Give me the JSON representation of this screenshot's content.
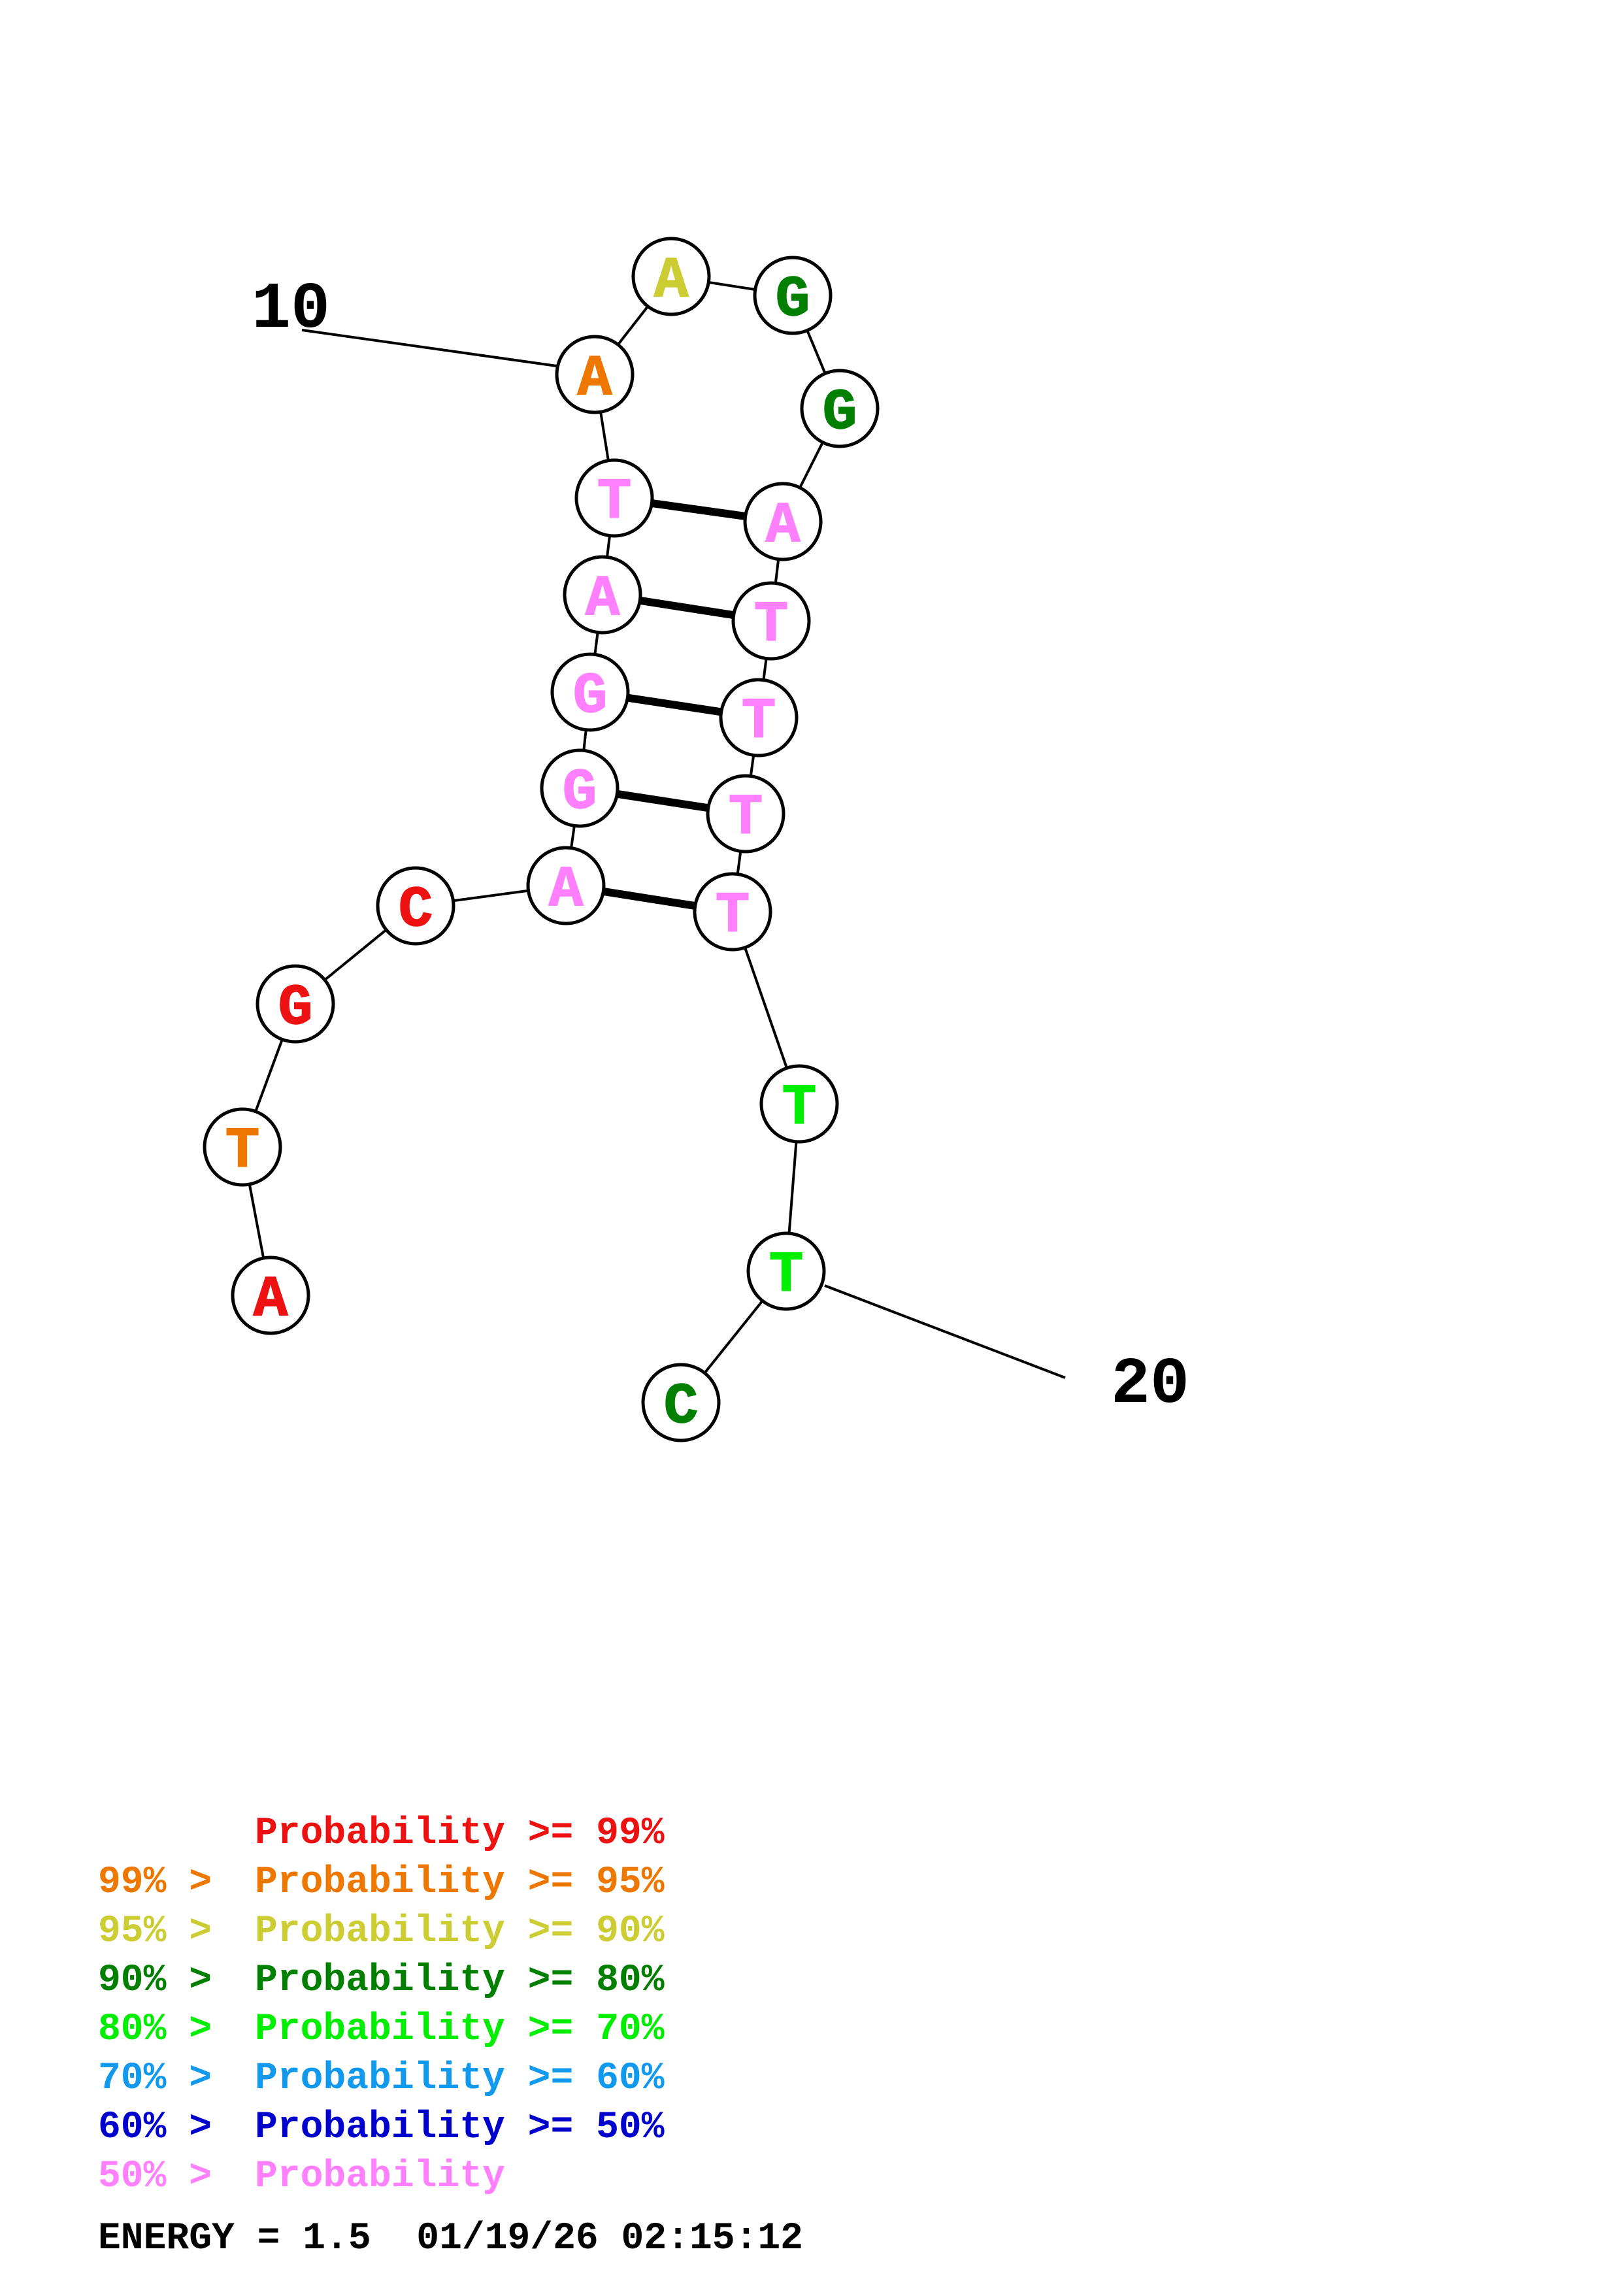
{
  "diagram": {
    "type": "rna-secondary-structure",
    "sequence_bases": [
      {
        "index": 1,
        "letter": "A",
        "color": "#ee1111"
      },
      {
        "index": 2,
        "letter": "T",
        "color": "#ee7700"
      },
      {
        "index": 3,
        "letter": "G",
        "color": "#ee1111"
      },
      {
        "index": 4,
        "letter": "C",
        "color": "#ee1111"
      },
      {
        "index": 5,
        "letter": "A",
        "color": "#ff80ff"
      },
      {
        "index": 6,
        "letter": "G",
        "color": "#ff80ff"
      },
      {
        "index": 7,
        "letter": "G",
        "color": "#ff80ff"
      },
      {
        "index": 8,
        "letter": "A",
        "color": "#ff80ff"
      },
      {
        "index": 9,
        "letter": "T",
        "color": "#ff80ff"
      },
      {
        "index": 10,
        "letter": "A",
        "color": "#ee7700"
      },
      {
        "index": 11,
        "letter": "A",
        "color": "#cccc33"
      },
      {
        "index": 12,
        "letter": "G",
        "color": "#007f00"
      },
      {
        "index": 13,
        "letter": "G",
        "color": "#007f00"
      },
      {
        "index": 14,
        "letter": "A",
        "color": "#ff80ff"
      },
      {
        "index": 15,
        "letter": "T",
        "color": "#ff80ff"
      },
      {
        "index": 16,
        "letter": "T",
        "color": "#ff80ff"
      },
      {
        "index": 17,
        "letter": "T",
        "color": "#ff80ff"
      },
      {
        "index": 18,
        "letter": "T",
        "color": "#ff80ff"
      },
      {
        "index": 19,
        "letter": "T",
        "color": "#00ee00"
      },
      {
        "index": 20,
        "letter": "T",
        "color": "#00ee00"
      },
      {
        "index": 21,
        "letter": "C",
        "color": "#007f00"
      }
    ],
    "pairs": [
      [
        9,
        14
      ],
      [
        8,
        15
      ],
      [
        7,
        16
      ],
      [
        6,
        17
      ],
      [
        5,
        18
      ]
    ],
    "position_labels": [
      {
        "text": "10",
        "base_index": 10
      },
      {
        "text": "20",
        "base_index": 20
      }
    ]
  },
  "legend": {
    "lines": [
      {
        "prefix": "",
        "text": "Probability >= 99%",
        "color": "#ee1111"
      },
      {
        "prefix": "99% > ",
        "text": "Probability >= 95%",
        "color": "#ee7700"
      },
      {
        "prefix": "95% > ",
        "text": "Probability >= 90%",
        "color": "#cccc33"
      },
      {
        "prefix": "90% > ",
        "text": "Probability >= 80%",
        "color": "#007f00"
      },
      {
        "prefix": "80% > ",
        "text": "Probability >= 70%",
        "color": "#00ee00"
      },
      {
        "prefix": "70% > ",
        "text": "Probability >= 60%",
        "color": "#1199ee"
      },
      {
        "prefix": "60% > ",
        "text": "Probability >= 50%",
        "color": "#0000cc"
      },
      {
        "prefix": "50% > ",
        "text": "Probability",
        "color": "#ff80ff"
      }
    ]
  },
  "footer": {
    "energy_text": "ENERGY = 1.5  01/19/26 02:15:12",
    "color": "#000000"
  }
}
